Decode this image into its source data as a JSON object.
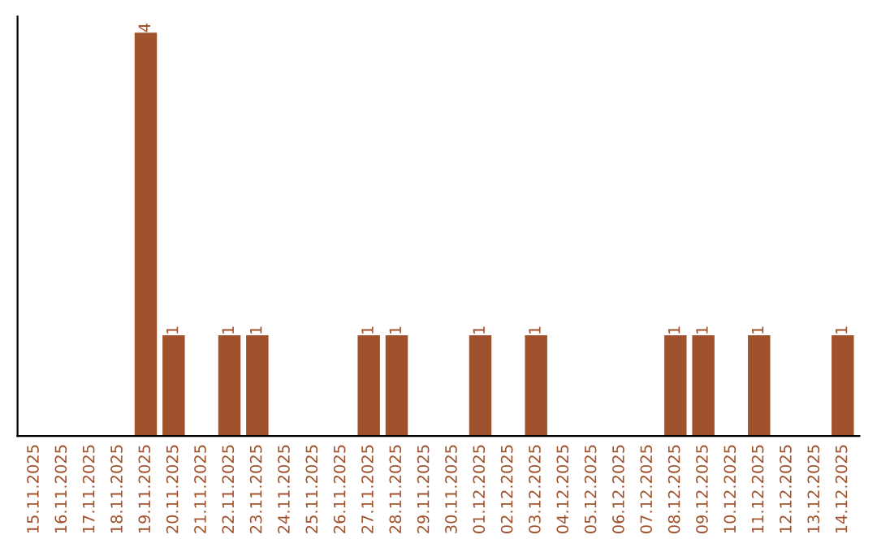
{
  "chart_data": {
    "type": "bar",
    "categories": [
      "15.11.2025",
      "16.11.2025",
      "17.11.2025",
      "18.11.2025",
      "19.11.2025",
      "20.11.2025",
      "21.11.2025",
      "22.11.2025",
      "23.11.2025",
      "24.11.2025",
      "25.11.2025",
      "26.11.2025",
      "27.11.2025",
      "28.11.2025",
      "29.11.2025",
      "30.11.2025",
      "01.12.2025",
      "02.12.2025",
      "03.12.2025",
      "04.12.2025",
      "05.12.2025",
      "06.12.2025",
      "07.12.2025",
      "08.12.2025",
      "09.12.2025",
      "10.12.2025",
      "11.12.2025",
      "12.12.2025",
      "13.12.2025",
      "14.12.2025"
    ],
    "values": [
      0,
      0,
      0,
      0,
      4,
      1,
      0,
      1,
      1,
      0,
      0,
      0,
      1,
      1,
      0,
      0,
      1,
      0,
      1,
      0,
      0,
      0,
      0,
      1,
      1,
      0,
      1,
      0,
      0,
      1
    ],
    "value_labels": [
      null,
      null,
      null,
      null,
      "4",
      "1",
      null,
      "1",
      "1",
      null,
      null,
      null,
      "1",
      "1",
      null,
      null,
      "1",
      null,
      "1",
      null,
      null,
      null,
      null,
      "1",
      "1",
      null,
      "1",
      null,
      null,
      "1"
    ],
    "color": "#a0522d",
    "tick_labels": "x",
    "grid": false,
    "legend": false
  }
}
